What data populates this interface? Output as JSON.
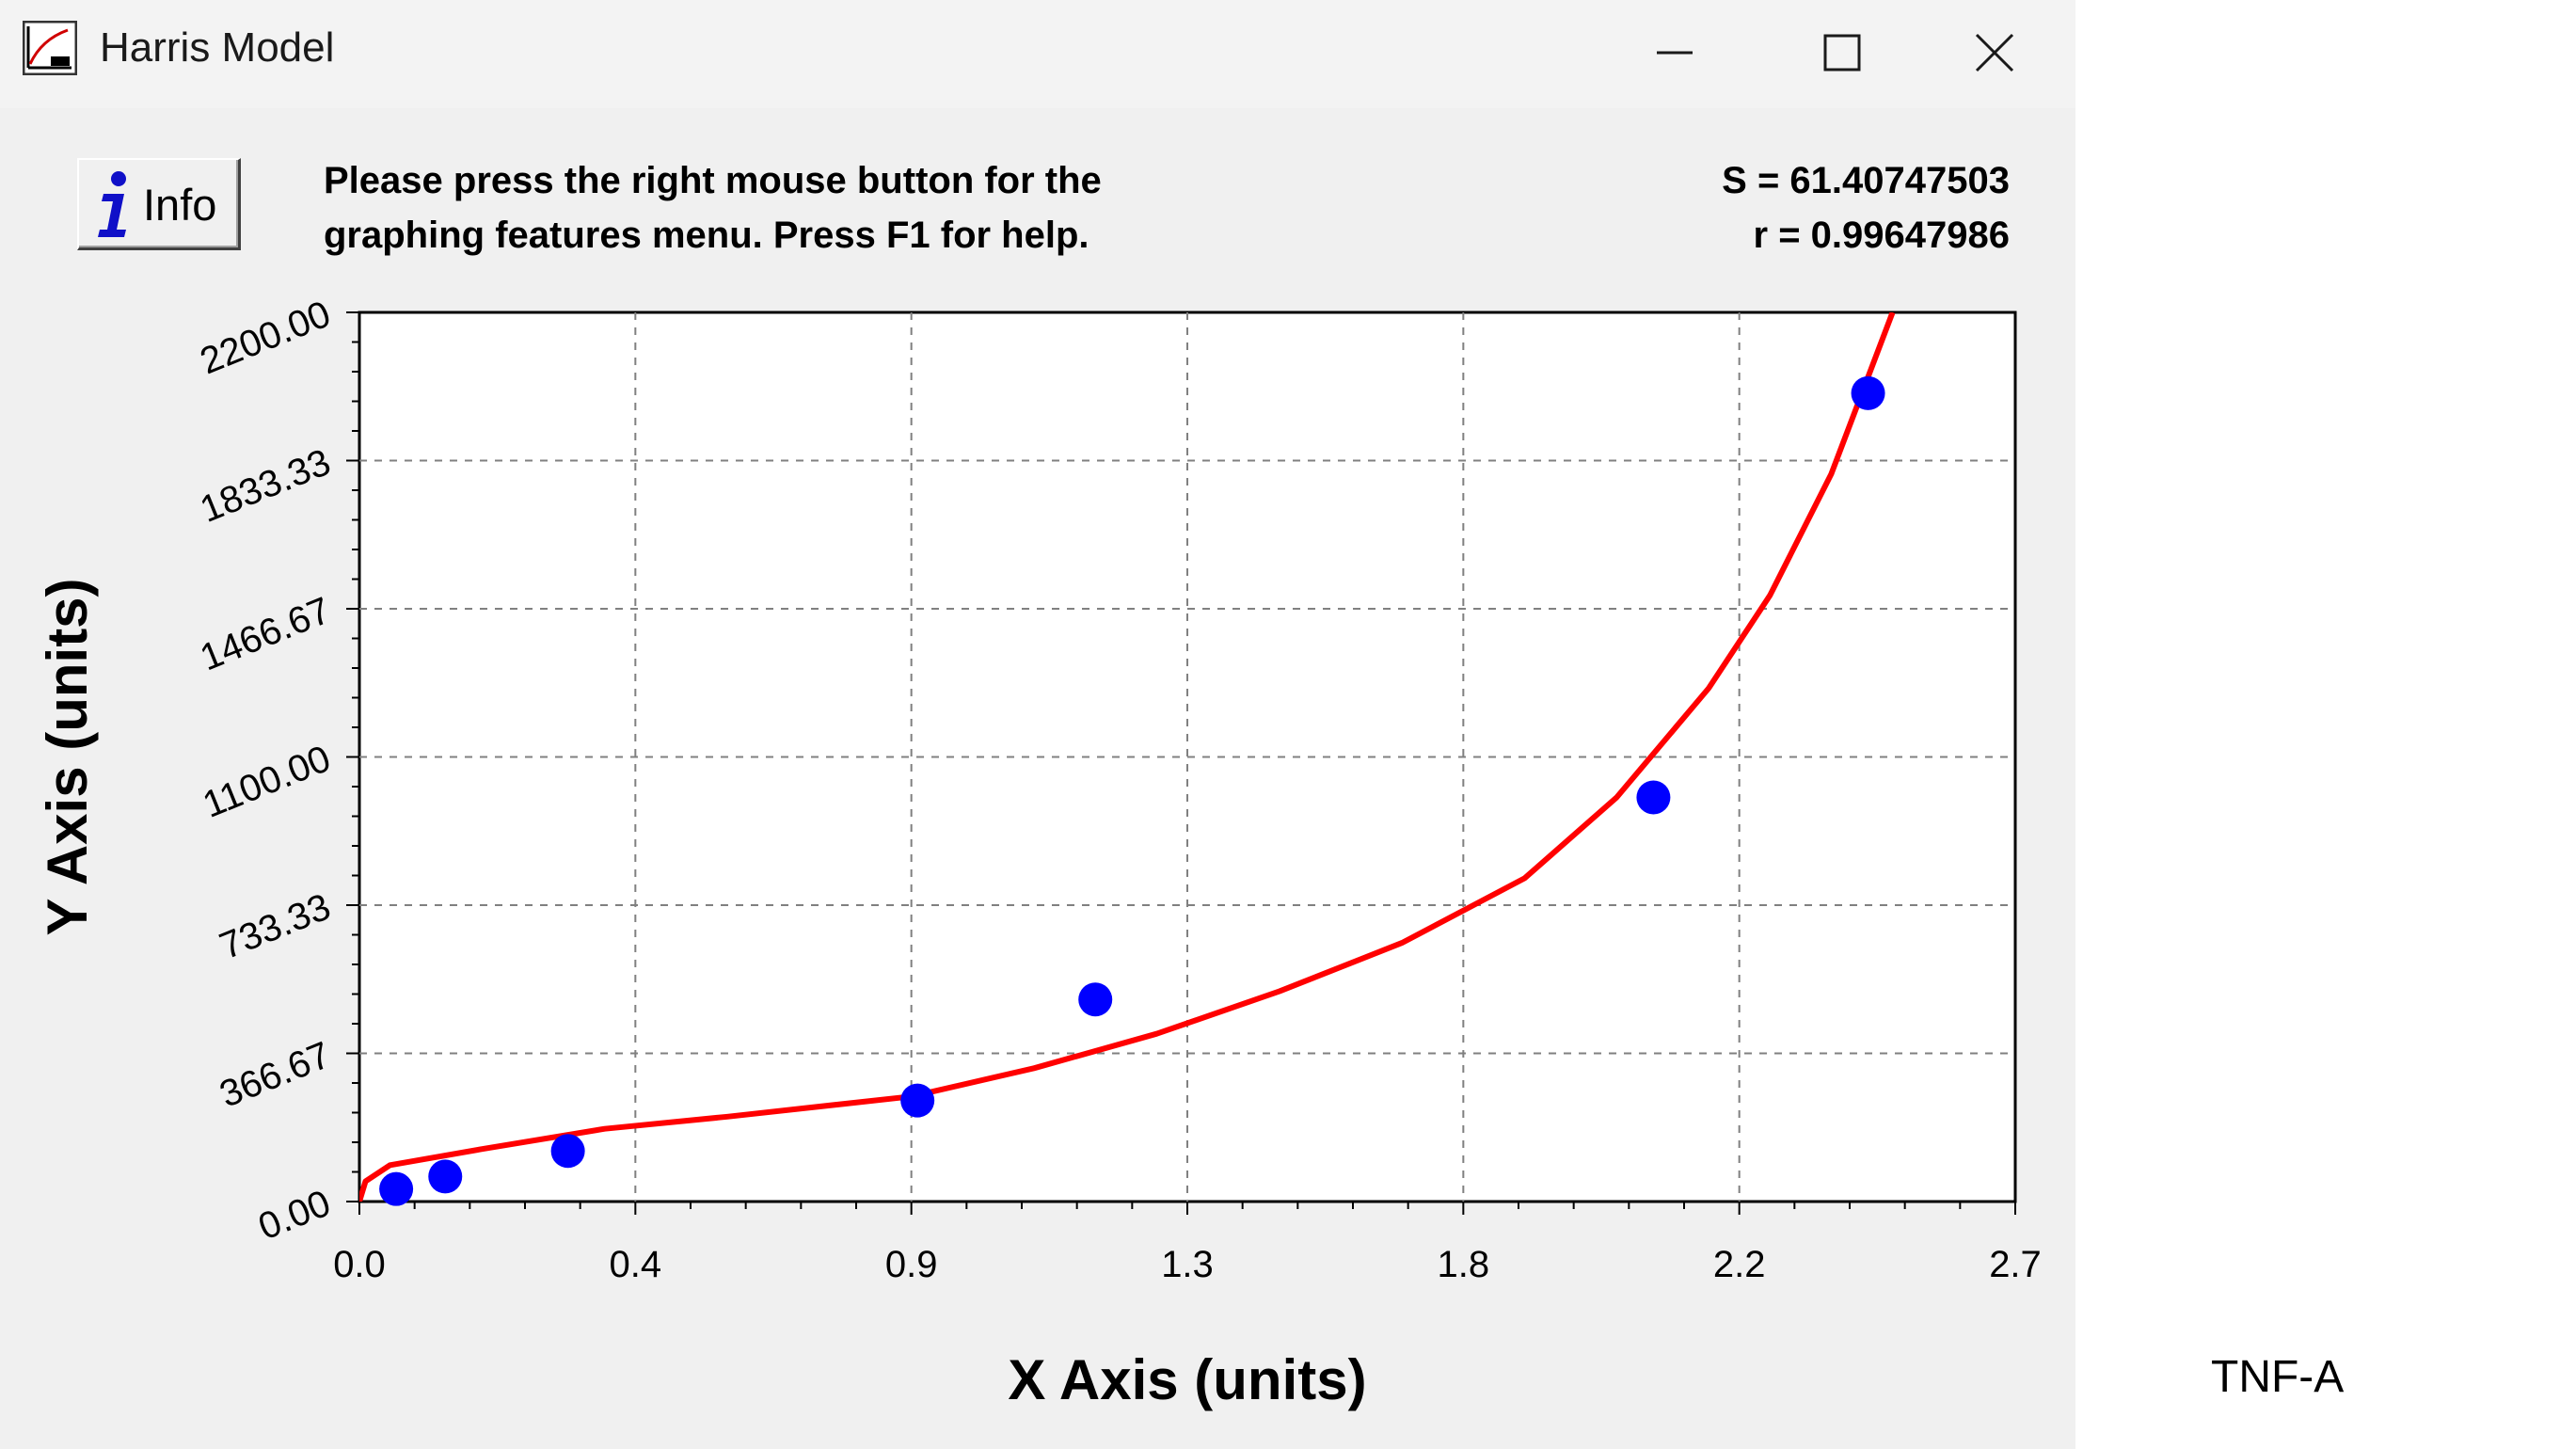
{
  "window": {
    "title": "Harris Model",
    "app_icon": "chart-app-icon",
    "controls": {
      "minimize_icon": "minimize-icon",
      "maximize_icon": "maximize-icon",
      "close_icon": "close-icon"
    }
  },
  "toolbar": {
    "info_label": "Info",
    "info_icon": "info-icon",
    "message_line1": "Please press the right mouse button for the",
    "message_line2": "graphing features menu.  Press F1 for help."
  },
  "stats": {
    "s_text": "S = 61.40747503",
    "r_text": "r = 0.99647986"
  },
  "outside_label": "TNF-A",
  "colors": {
    "curve": "#ff0000",
    "points": "#0000ff",
    "grid": "#808080"
  },
  "chart_data": {
    "type": "scatter",
    "xlabel": "X Axis (units)",
    "ylabel": "Y Axis (units)",
    "xlim": [
      0,
      2.7
    ],
    "ylim": [
      0,
      2200
    ],
    "x_ticks": [
      "0.0",
      "0.4",
      "0.9",
      "1.3",
      "1.8",
      "2.2",
      "2.7"
    ],
    "y_ticks": [
      "0.00",
      "366.67",
      "733.33",
      "1100.00",
      "1466.67",
      "1833.33",
      "2200.00"
    ],
    "grid": true,
    "series": [
      {
        "kind": "points",
        "x": [
          0.06,
          0.14,
          0.34,
          0.91,
          1.2,
          2.11,
          2.46
        ],
        "y": [
          31,
          62,
          125,
          250,
          500,
          1000,
          2000
        ]
      },
      {
        "kind": "fit-curve",
        "x": [
          0.0,
          0.01,
          0.05,
          0.2,
          0.4,
          0.6,
          0.9,
          1.1,
          1.3,
          1.5,
          1.7,
          1.9,
          2.05,
          2.2,
          2.3,
          2.4,
          2.45,
          2.5
        ],
        "y": [
          0,
          50,
          90,
          130,
          180,
          210,
          260,
          330,
          415,
          520,
          640,
          800,
          1000,
          1270,
          1500,
          1800,
          2000,
          2200
        ]
      }
    ]
  }
}
